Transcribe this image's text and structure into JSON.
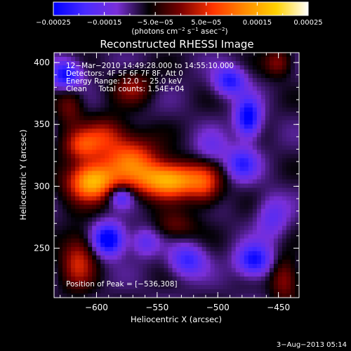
{
  "chart_data": {
    "type": "heatmap",
    "title": "Reconstructed RHESSI Image",
    "xlabel": "Heliocentric X (arcsec)",
    "ylabel": "Heliocentric Y (arcsec)",
    "xlim": [
      -635,
      -433
    ],
    "ylim": [
      210,
      408
    ],
    "x_ticks": [
      -600,
      -550,
      -500,
      -450
    ],
    "x_tick_labels": [
      "−600",
      "−550",
      "−500",
      "−450"
    ],
    "y_ticks": [
      250,
      300,
      350,
      400
    ],
    "y_tick_labels": [
      "250",
      "300",
      "350",
      "400"
    ],
    "colorbar": {
      "range": [
        -0.00025,
        0.00025
      ],
      "ticks": [
        -0.00025,
        -0.00015,
        -5e-05,
        5e-05,
        0.00015,
        0.00025
      ],
      "tick_labels": [
        "−0.00025",
        "−0.00015",
        "−5.0e−05",
        "5.0e−05",
        "0.00015",
        "0.00025"
      ],
      "units_text": "(photons cm",
      "units_sup1": "−2",
      "units_mid": " s",
      "units_sup2": "−1",
      "units_mid2": " asec",
      "units_sup3": "−2",
      "units_end": ")",
      "colors": [
        "#0000ff",
        "#4a2bff",
        "#7a2fd8",
        "#000000",
        "#7a0000",
        "#ff3300",
        "#ff8a00",
        "#ffd200",
        "#ffffff"
      ]
    },
    "info_lines": [
      "12−Mar−2010 14:49:28.000 to 14:55:10.000",
      "Detectors: 4F 5F 6F 7F 8F, Att 0",
      "Energy Range: 12.0 − 25.0 keV",
      "Clean     Total counts: 1.54E+04"
    ],
    "peak_label": "Position of Peak = [−536,308]",
    "peak": [
      -536,
      308
    ],
    "sources": [
      {
        "x": -604,
        "y": 304,
        "amp": 0.00025,
        "sx": 14,
        "sy": 11
      },
      {
        "x": -540,
        "y": 305,
        "amp": 0.00025,
        "sx": 20,
        "sy": 10
      },
      {
        "x": -572,
        "y": 322,
        "amp": 0.00016,
        "sx": 16,
        "sy": 13
      },
      {
        "x": -612,
        "y": 333,
        "amp": 0.00013,
        "sx": 11,
        "sy": 9
      },
      {
        "x": -570,
        "y": 380,
        "amp": 9e-05,
        "sx": 11,
        "sy": 9
      },
      {
        "x": -622,
        "y": 365,
        "amp": 8e-05,
        "sx": 8,
        "sy": 11
      },
      {
        "x": -592,
        "y": 342,
        "amp": 0.0001,
        "sx": 12,
        "sy": 10
      },
      {
        "x": -510,
        "y": 300,
        "amp": 9e-05,
        "sx": 9,
        "sy": 12
      },
      {
        "x": -535,
        "y": 268,
        "amp": 7e-05,
        "sx": 12,
        "sy": 8
      },
      {
        "x": -615,
        "y": 240,
        "amp": 0.00012,
        "sx": 10,
        "sy": 16
      },
      {
        "x": -450,
        "y": 400,
        "amp": 9e-05,
        "sx": 8,
        "sy": 8
      },
      {
        "x": -445,
        "y": 225,
        "amp": 0.0001,
        "sx": 8,
        "sy": 12
      },
      {
        "x": -580,
        "y": 292,
        "amp": -0.00012,
        "sx": 7,
        "sy": 6
      },
      {
        "x": -590,
        "y": 257,
        "amp": -0.0002,
        "sx": 9,
        "sy": 9
      },
      {
        "x": -475,
        "y": 355,
        "amp": -0.00018,
        "sx": 7,
        "sy": 11
      },
      {
        "x": -490,
        "y": 385,
        "amp": -0.00014,
        "sx": 9,
        "sy": 8
      },
      {
        "x": -470,
        "y": 240,
        "amp": -0.00016,
        "sx": 10,
        "sy": 9
      },
      {
        "x": -625,
        "y": 390,
        "amp": -0.00016,
        "sx": 9,
        "sy": 8
      },
      {
        "x": -525,
        "y": 240,
        "amp": -0.00012,
        "sx": 10,
        "sy": 9
      },
      {
        "x": -480,
        "y": 318,
        "amp": -0.00012,
        "sx": 9,
        "sy": 9
      },
      {
        "x": -560,
        "y": 255,
        "amp": -8e-05,
        "sx": 8,
        "sy": 8
      },
      {
        "x": -505,
        "y": 330,
        "amp": -6e-05,
        "sx": 10,
        "sy": 10
      },
      {
        "x": -455,
        "y": 275,
        "amp": -8e-05,
        "sx": 9,
        "sy": 12
      }
    ]
  },
  "footer": {
    "date": "3−Aug−2013 05:14"
  }
}
